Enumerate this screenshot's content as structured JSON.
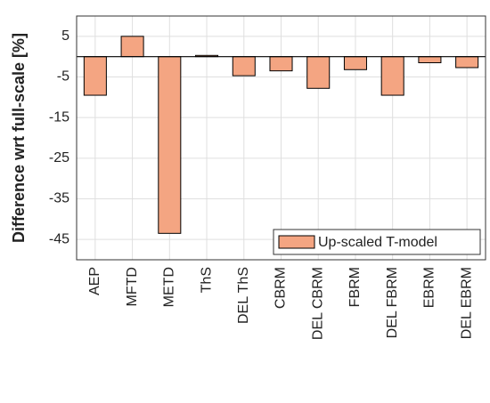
{
  "chart_data": {
    "type": "bar",
    "ylabel": "Difference wrt full-scale [%]",
    "categories": [
      "AEP",
      "MFTD",
      "METD",
      "ThS",
      "DEL ThS",
      "CBRM",
      "DEL CBRM",
      "FBRM",
      "DEL FBRM",
      "EBRM",
      "DEL EBRM"
    ],
    "series": [
      {
        "name": "Up-scaled T-model",
        "color": "#f4a582",
        "values": [
          -9.5,
          5,
          -43.5,
          0.3,
          -4.7,
          -3.5,
          -7.8,
          -3.2,
          -9.5,
          -1.5,
          -2.7
        ]
      }
    ],
    "ylim": [
      -50,
      10
    ],
    "yticks": [
      5,
      -5,
      -15,
      -25,
      -35,
      -45
    ],
    "grid": true,
    "legend": "lower right"
  }
}
